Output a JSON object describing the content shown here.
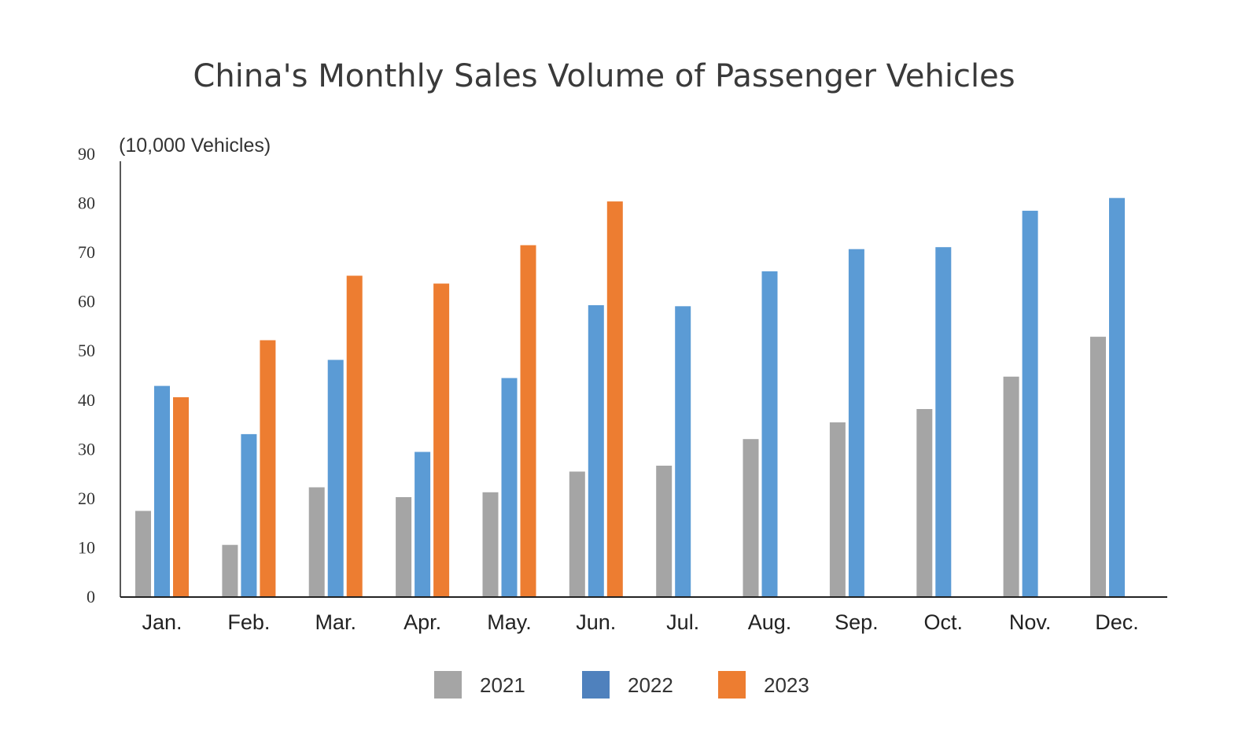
{
  "chart_data": {
    "type": "bar",
    "title": "China's Monthly Sales Volume of Passenger Vehicles",
    "ylabel": "(10,000 Vehicles)",
    "xlabel": "",
    "ylim": [
      0,
      90
    ],
    "yticks": [
      "0",
      "10",
      "20",
      "30",
      "40",
      "50",
      "60",
      "70",
      "80",
      "90"
    ],
    "categories": [
      "Jan.",
      "Feb.",
      "Mar.",
      "Apr.",
      "May.",
      "Jun.",
      "Jul.",
      "Aug.",
      "Sep.",
      "Oct.",
      "Nov.",
      "Dec."
    ],
    "series": [
      {
        "name": "2021",
        "color": "#a5a5a5",
        "values": [
          17.5,
          10.6,
          22.3,
          20.3,
          21.3,
          25.5,
          26.7,
          32.1,
          35.5,
          38.2,
          44.8,
          52.9
        ]
      },
      {
        "name": "2022",
        "color": "#5b9bd5",
        "values": [
          42.9,
          33.1,
          48.2,
          29.5,
          44.5,
          59.3,
          59.1,
          66.2,
          70.7,
          71.1,
          78.5,
          81.1
        ]
      },
      {
        "name": "2023",
        "color": "#ed7d31",
        "values": [
          40.6,
          52.2,
          65.3,
          63.7,
          71.5,
          80.4,
          null,
          null,
          null,
          null,
          null,
          null
        ]
      }
    ],
    "legend": {
      "placement": "bottom-center",
      "items": [
        {
          "label": "2021",
          "color": "#a5a5a5"
        },
        {
          "label": "2022",
          "color": "#4f81bd"
        },
        {
          "label": "2023",
          "color": "#ed7d31"
        }
      ]
    },
    "grid": false
  }
}
